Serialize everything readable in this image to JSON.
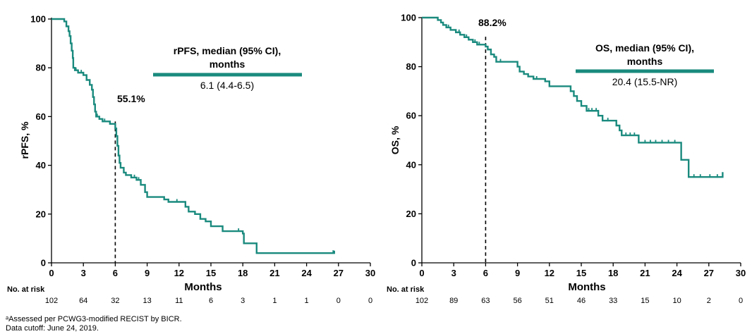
{
  "colors": {
    "curve": "#1a8a7e",
    "axis": "#000000"
  },
  "risk_label": "No. at risk",
  "footnote_1": "ᵃAssessed per PCWG3-modified RECIST by BICR.",
  "footnote_2": "Data cutoff: June 24, 2019.",
  "chart_data": [
    {
      "type": "line",
      "ylabel": "rPFS, %",
      "xlabel": "Months",
      "xlim": [
        0,
        30
      ],
      "ylim": [
        0,
        100
      ],
      "xticks": [
        0,
        3,
        6,
        9,
        12,
        15,
        18,
        21,
        24,
        27,
        30
      ],
      "yticks": [
        0,
        20,
        40,
        60,
        80,
        100
      ],
      "legend_title_1": "rPFS, median (95% CI),",
      "legend_title_2": "months",
      "legend_value": "6.1 (4.4-6.5)",
      "annotation": "55.1%",
      "annotation_x": 6,
      "annotation_y": 55.1,
      "at_risk": [
        "102",
        "64",
        "32",
        "13",
        "11",
        "6",
        "3",
        "1",
        "1",
        "0",
        "0"
      ],
      "curve": [
        [
          0,
          100
        ],
        [
          1,
          100
        ],
        [
          1.2,
          99
        ],
        [
          1.4,
          97
        ],
        [
          1.6,
          95
        ],
        [
          1.7,
          93
        ],
        [
          1.8,
          90
        ],
        [
          1.9,
          87
        ],
        [
          2.0,
          84
        ],
        [
          2.05,
          80
        ],
        [
          2.2,
          79
        ],
        [
          2.5,
          78
        ],
        [
          3.0,
          77
        ],
        [
          3.3,
          75
        ],
        [
          3.6,
          73
        ],
        [
          3.8,
          71
        ],
        [
          3.9,
          68
        ],
        [
          4.0,
          65
        ],
        [
          4.1,
          62
        ],
        [
          4.2,
          60
        ],
        [
          4.5,
          59
        ],
        [
          4.8,
          58
        ],
        [
          5.5,
          57
        ],
        [
          6.0,
          55.1
        ],
        [
          6.1,
          52
        ],
        [
          6.2,
          48
        ],
        [
          6.3,
          44
        ],
        [
          6.4,
          41
        ],
        [
          6.5,
          39
        ],
        [
          6.8,
          37
        ],
        [
          7.0,
          36
        ],
        [
          7.5,
          35
        ],
        [
          8.0,
          34
        ],
        [
          8.4,
          32
        ],
        [
          8.8,
          29
        ],
        [
          9.0,
          27
        ],
        [
          10.5,
          27
        ],
        [
          10.6,
          26
        ],
        [
          11.0,
          25
        ],
        [
          12.5,
          25
        ],
        [
          12.6,
          23
        ],
        [
          12.9,
          21
        ],
        [
          13.5,
          20
        ],
        [
          14.0,
          18
        ],
        [
          14.5,
          17
        ],
        [
          15.0,
          15
        ],
        [
          16.0,
          15
        ],
        [
          16.1,
          13
        ],
        [
          17.5,
          13
        ],
        [
          18.0,
          12
        ],
        [
          18.1,
          8
        ],
        [
          19.2,
          8
        ],
        [
          19.3,
          4
        ],
        [
          26.5,
          4
        ],
        [
          26.6,
          5
        ]
      ],
      "censor": [
        [
          2.3,
          79
        ],
        [
          2.8,
          78
        ],
        [
          4.3,
          60
        ],
        [
          5.0,
          58
        ],
        [
          7.8,
          35
        ],
        [
          8.2,
          34
        ],
        [
          11.8,
          25
        ],
        [
          17.6,
          13
        ],
        [
          26.5,
          4
        ]
      ]
    },
    {
      "type": "line",
      "ylabel": "OS, %",
      "xlabel": "Months",
      "xlim": [
        0,
        30
      ],
      "ylim": [
        0,
        100
      ],
      "xticks": [
        0,
        3,
        6,
        9,
        12,
        15,
        18,
        21,
        24,
        27,
        30
      ],
      "yticks": [
        0,
        20,
        40,
        60,
        80,
        100
      ],
      "legend_title_1": "OS, median (95% CI),",
      "legend_title_2": "months",
      "legend_value": "20.4 (15.5-NR)",
      "annotation": "88.2%",
      "annotation_x": 6,
      "annotation_y": 88.2,
      "at_risk": [
        "102",
        "89",
        "63",
        "56",
        "51",
        "46",
        "33",
        "15",
        "10",
        "2",
        "0"
      ],
      "curve": [
        [
          0,
          100
        ],
        [
          1.3,
          100
        ],
        [
          1.5,
          99
        ],
        [
          1.8,
          98
        ],
        [
          2.0,
          97
        ],
        [
          2.3,
          96
        ],
        [
          2.7,
          95
        ],
        [
          3.2,
          94
        ],
        [
          3.6,
          93
        ],
        [
          4.0,
          92
        ],
        [
          4.4,
          91
        ],
        [
          4.8,
          90
        ],
        [
          5.2,
          89
        ],
        [
          5.6,
          89
        ],
        [
          6.0,
          88.2
        ],
        [
          6.2,
          87
        ],
        [
          6.5,
          85
        ],
        [
          6.8,
          84
        ],
        [
          7.0,
          82
        ],
        [
          8.8,
          82
        ],
        [
          9.0,
          80
        ],
        [
          9.2,
          78
        ],
        [
          9.6,
          77
        ],
        [
          10.0,
          76
        ],
        [
          10.5,
          75
        ],
        [
          11.5,
          75
        ],
        [
          11.6,
          74
        ],
        [
          12.0,
          72
        ],
        [
          13.8,
          72
        ],
        [
          14.0,
          70
        ],
        [
          14.3,
          68
        ],
        [
          14.6,
          66
        ],
        [
          15.0,
          64
        ],
        [
          15.5,
          62
        ],
        [
          16.2,
          62
        ],
        [
          16.6,
          60
        ],
        [
          17.0,
          58
        ],
        [
          18.0,
          58
        ],
        [
          18.3,
          56
        ],
        [
          18.6,
          54
        ],
        [
          18.8,
          52
        ],
        [
          20.2,
          52
        ],
        [
          20.4,
          49
        ],
        [
          24.3,
          49
        ],
        [
          24.4,
          42
        ],
        [
          24.9,
          42
        ],
        [
          25.1,
          35
        ],
        [
          28.3,
          35
        ],
        [
          28.3,
          37
        ]
      ],
      "censor": [
        [
          2.5,
          96
        ],
        [
          3.5,
          94
        ],
        [
          4.2,
          92
        ],
        [
          5.0,
          90
        ],
        [
          5.4,
          89
        ],
        [
          7.4,
          82
        ],
        [
          10.8,
          75
        ],
        [
          15.7,
          62
        ],
        [
          16.0,
          62
        ],
        [
          16.4,
          62
        ],
        [
          17.5,
          58
        ],
        [
          19.2,
          52
        ],
        [
          19.6,
          52
        ],
        [
          20.0,
          52
        ],
        [
          21.0,
          49
        ],
        [
          21.5,
          49
        ],
        [
          22.0,
          49
        ],
        [
          22.6,
          49
        ],
        [
          23.2,
          49
        ],
        [
          23.8,
          49
        ],
        [
          25.6,
          35
        ],
        [
          26.2,
          35
        ],
        [
          27.1,
          35
        ],
        [
          27.8,
          35
        ]
      ]
    }
  ]
}
